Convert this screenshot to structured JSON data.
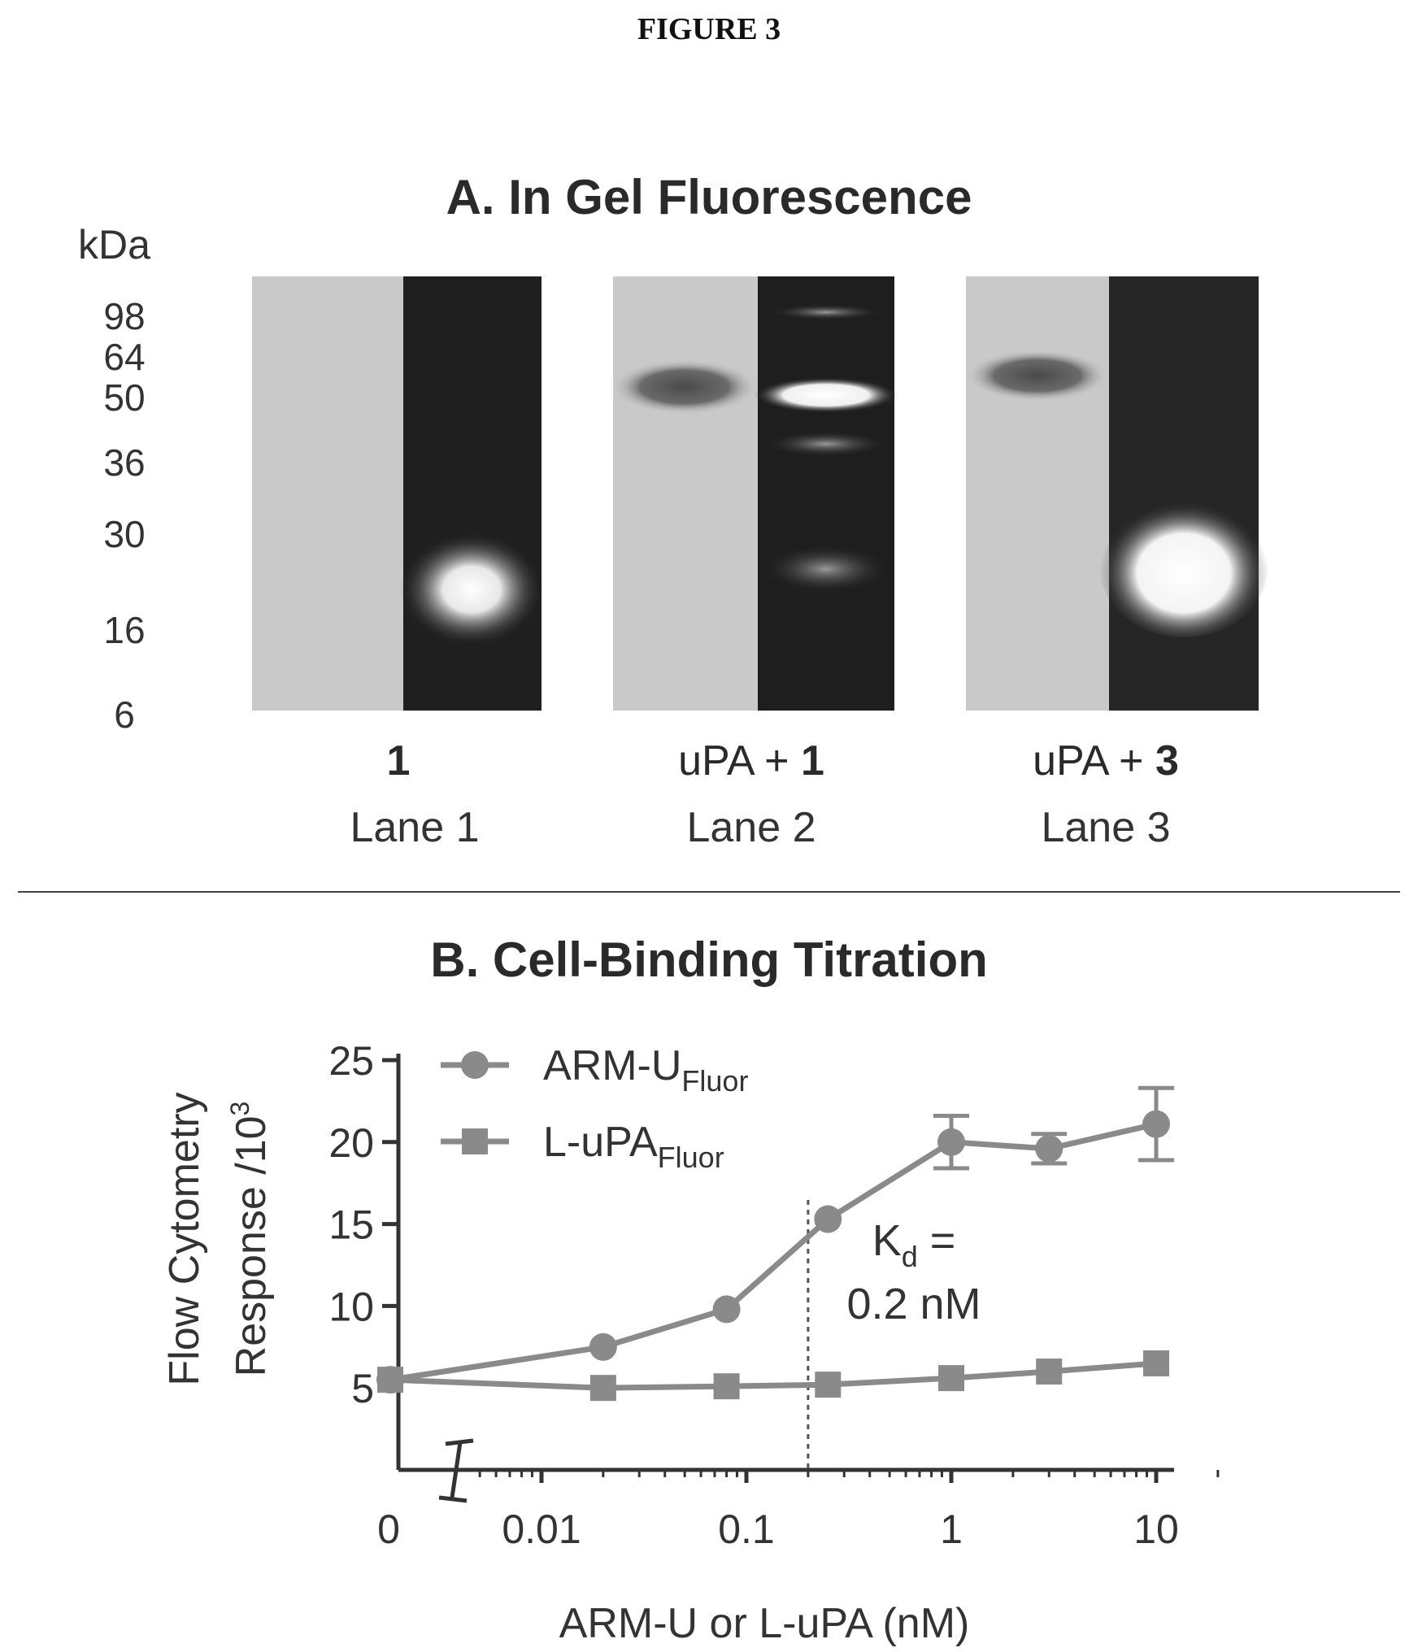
{
  "figure": {
    "title": "FIGURE 3"
  },
  "panel_a": {
    "title": "A. In Gel Fluorescence",
    "unit_label": "kDa",
    "markers": [
      "98",
      "64",
      "50",
      "36",
      "30",
      "16",
      "6"
    ],
    "lanes": [
      {
        "sample_prefix": "",
        "sample_bold": "1",
        "label": "Lane 1"
      },
      {
        "sample_prefix": "uPA + ",
        "sample_bold": "1",
        "label": "Lane 2"
      },
      {
        "sample_prefix": "uPA + ",
        "sample_bold": "3",
        "label": "Lane 3"
      }
    ]
  },
  "chart_data": {
    "type": "line",
    "title": "B. Cell-Binding Titration",
    "xlabel": "ARM-U or L-uPA (nM)",
    "ylabel_line1": "Flow Cytometry",
    "ylabel_line2": "Response /10",
    "ylabel_sup": "3",
    "xscale": "log (with 0 at left, axis break)",
    "xticks": [
      "0",
      "0.01",
      "0.1",
      "1",
      "10"
    ],
    "yticks": [
      "5",
      "10",
      "15",
      "20",
      "25"
    ],
    "ylim": [
      0,
      25
    ],
    "annotation_line1": "K",
    "annotation_sub": "d",
    "annotation_eq": " =",
    "annotation_line2": "0.2 nM",
    "kd_nM": 0.2,
    "series": [
      {
        "name_base": "ARM-U",
        "name_sub": "Fluor",
        "marker": "circle",
        "points": [
          {
            "x": 0,
            "y": 5.5
          },
          {
            "x": 0.02,
            "y": 7.5
          },
          {
            "x": 0.08,
            "y": 9.8
          },
          {
            "x": 0.25,
            "y": 15.3
          },
          {
            "x": 1,
            "y": 20,
            "err": 1.6
          },
          {
            "x": 3,
            "y": 19.6,
            "err": 0.9
          },
          {
            "x": 10,
            "y": 21.1,
            "err": 2.2
          }
        ]
      },
      {
        "name_base": "L-uPA",
        "name_sub": "Fluor",
        "marker": "square",
        "points": [
          {
            "x": 0,
            "y": 5.5
          },
          {
            "x": 0.02,
            "y": 5.0
          },
          {
            "x": 0.08,
            "y": 5.1
          },
          {
            "x": 0.25,
            "y": 5.2
          },
          {
            "x": 1,
            "y": 5.6
          },
          {
            "x": 3,
            "y": 6.0
          },
          {
            "x": 10,
            "y": 6.5
          }
        ]
      }
    ],
    "colors": {
      "series": "#8a8a8a",
      "axis": "#333333"
    }
  }
}
